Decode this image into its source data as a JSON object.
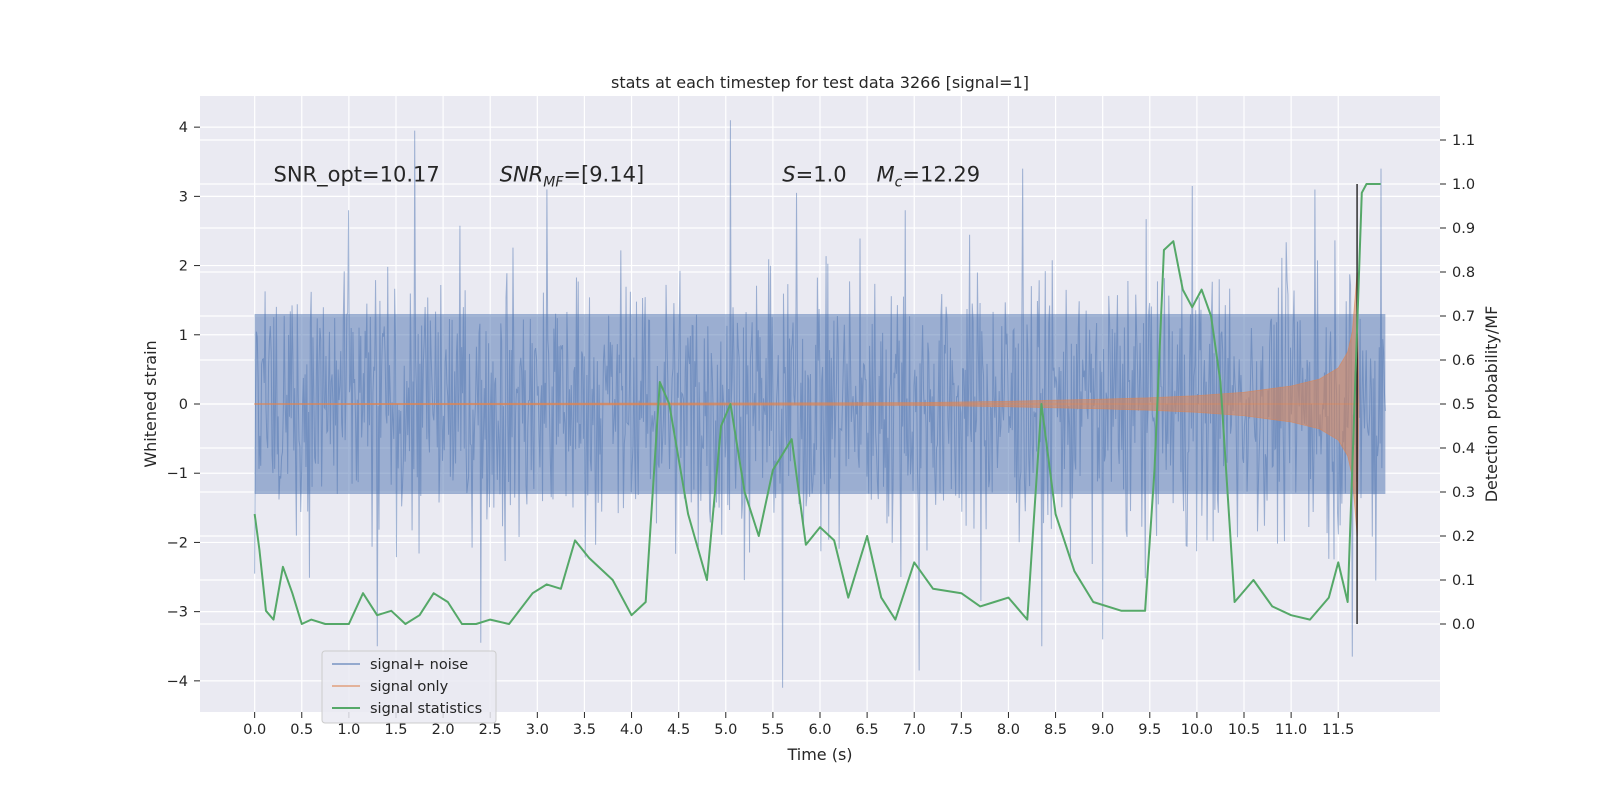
{
  "chart_data": {
    "type": "line",
    "title": "stats at each timestep for test data 3266 [signal=1]",
    "xlabel": "Time (s)",
    "ylabel_left": "Whitened strain",
    "ylabel_right": "Detection probability/MF",
    "xlim": [
      -0.58,
      12.58
    ],
    "ylim_left": [
      -4.45,
      4.45
    ],
    "ylim_right": [
      -0.2,
      1.2
    ],
    "xticks": [
      "0.0",
      "0.5",
      "1.0",
      "1.5",
      "2.0",
      "2.5",
      "3.0",
      "3.5",
      "4.0",
      "4.5",
      "5.0",
      "5.5",
      "6.0",
      "6.5",
      "7.0",
      "7.5",
      "8.0",
      "8.5",
      "9.0",
      "9.5",
      "10.0",
      "10.5",
      "11.0",
      "11.5"
    ],
    "yticks_left": [
      "4",
      "3",
      "2",
      "1",
      "0",
      "−1",
      "−2",
      "−3",
      "−4"
    ],
    "yticks_right": [
      "1.1",
      "1.0",
      "0.9",
      "0.8",
      "0.7",
      "0.6",
      "0.5",
      "0.4",
      "0.3",
      "0.2",
      "0.1",
      "0.0"
    ],
    "grid": true,
    "legend_position": "lower-left",
    "annotations": [
      {
        "text": "SNR_opt=10.17",
        "x": 0.2,
        "y": 3.3
      },
      {
        "text": "SNR_MF=[9.14]",
        "x": 2.6,
        "y": 3.3
      },
      {
        "text": "S=1.0",
        "x": 5.6,
        "y": 3.3
      },
      {
        "text": "M_c=12.29",
        "x": 6.6,
        "y": 3.3
      }
    ],
    "series": [
      {
        "name": "signal+ noise",
        "color": "#4c72b0",
        "axis": "left",
        "style": "dense-noise",
        "x_range": [
          0.0,
          12.0
        ],
        "envelope_core": [
          -1.3,
          1.3
        ],
        "envelope_typical": [
          -2.8,
          2.8
        ],
        "peaks_upper": [
          [
            1.0,
            2.8
          ],
          [
            1.7,
            3.95
          ],
          [
            3.1,
            3.1
          ],
          [
            5.05,
            4.1
          ],
          [
            5.75,
            3.05
          ],
          [
            6.9,
            2.8
          ],
          [
            8.15,
            3.4
          ],
          [
            9.95,
            3.15
          ],
          [
            11.25,
            3.1
          ],
          [
            11.95,
            3.4
          ]
        ],
        "peaks_lower": [
          [
            0.0,
            -2.45
          ],
          [
            1.3,
            -3.5
          ],
          [
            2.4,
            -3.45
          ],
          [
            5.6,
            -4.1
          ],
          [
            7.05,
            -3.85
          ],
          [
            8.35,
            -3.5
          ],
          [
            9.0,
            -3.4
          ],
          [
            11.65,
            -3.65
          ],
          [
            11.9,
            -2.55
          ]
        ]
      },
      {
        "name": "signal only",
        "color": "#dd8452",
        "axis": "left",
        "style": "chirp-envelope",
        "x": [
          0.0,
          7.0,
          8.0,
          9.0,
          9.5,
          10.0,
          10.5,
          11.0,
          11.3,
          11.5,
          11.6,
          11.65,
          11.7,
          11.72
        ],
        "amplitude": [
          0.005,
          0.02,
          0.04,
          0.07,
          0.09,
          0.12,
          0.17,
          0.26,
          0.36,
          0.52,
          0.75,
          1.05,
          1.9,
          0.0
        ]
      },
      {
        "name": "signal statistics",
        "color": "#55a868",
        "axis": "right",
        "x": [
          0.0,
          0.05,
          0.12,
          0.2,
          0.3,
          0.4,
          0.5,
          0.6,
          0.75,
          0.9,
          1.0,
          1.15,
          1.3,
          1.45,
          1.6,
          1.75,
          1.9,
          2.05,
          2.2,
          2.35,
          2.5,
          2.7,
          2.95,
          3.1,
          3.25,
          3.4,
          3.55,
          3.8,
          4.0,
          4.15,
          4.3,
          4.4,
          4.6,
          4.8,
          4.95,
          5.05,
          5.2,
          5.35,
          5.5,
          5.7,
          5.85,
          6.0,
          6.15,
          6.3,
          6.5,
          6.65,
          6.8,
          7.0,
          7.2,
          7.5,
          7.7,
          7.85,
          8.0,
          8.2,
          8.35,
          8.5,
          8.7,
          8.9,
          9.2,
          9.45,
          9.55,
          9.65,
          9.75,
          9.85,
          9.95,
          10.05,
          10.15,
          10.25,
          10.4,
          10.6,
          10.8,
          11.0,
          11.2,
          11.4,
          11.5,
          11.6,
          11.75,
          11.8,
          11.85,
          11.95
        ],
        "values": [
          0.25,
          0.17,
          0.03,
          0.01,
          0.13,
          0.07,
          0.0,
          0.01,
          0.0,
          0.0,
          0.0,
          0.07,
          0.02,
          0.03,
          0.0,
          0.02,
          0.07,
          0.05,
          0.0,
          0.0,
          0.01,
          0.0,
          0.07,
          0.09,
          0.08,
          0.19,
          0.15,
          0.1,
          0.02,
          0.05,
          0.55,
          0.5,
          0.25,
          0.1,
          0.45,
          0.5,
          0.3,
          0.2,
          0.35,
          0.42,
          0.18,
          0.22,
          0.19,
          0.06,
          0.2,
          0.06,
          0.01,
          0.14,
          0.08,
          0.07,
          0.04,
          0.05,
          0.06,
          0.01,
          0.5,
          0.25,
          0.12,
          0.05,
          0.03,
          0.03,
          0.35,
          0.85,
          0.87,
          0.76,
          0.72,
          0.76,
          0.7,
          0.55,
          0.05,
          0.1,
          0.04,
          0.02,
          0.01,
          0.06,
          0.14,
          0.05,
          0.98,
          1.0,
          1.0,
          1.0
        ]
      }
    ],
    "vertical_marker": {
      "x": 11.7,
      "color": "#000000"
    }
  }
}
